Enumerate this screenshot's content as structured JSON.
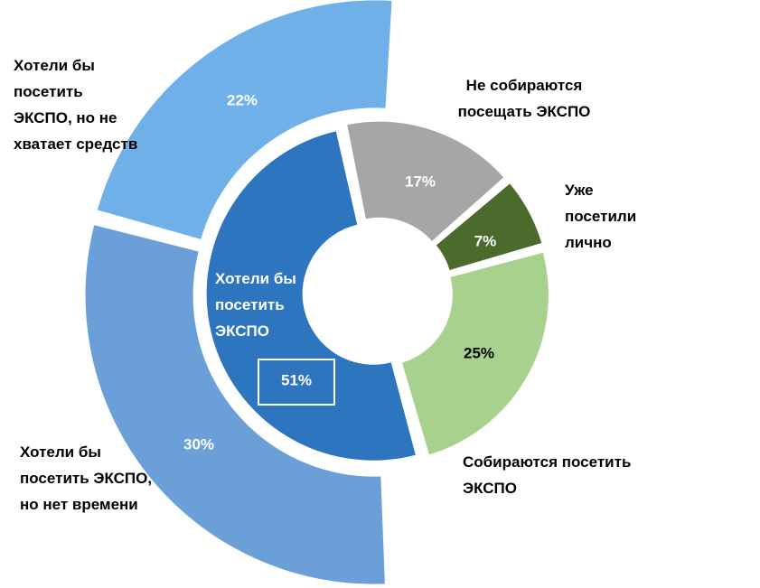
{
  "chart_data": [
    {
      "type": "donut",
      "categories": [
        "Не собираются посещать ЭКСПО",
        "Уже посетили лично",
        "Собираются посетить ЭКСПО",
        "Хотели бы посетить ЭКСПО"
      ],
      "values": [
        17,
        7,
        25,
        51
      ],
      "value_labels": [
        "17%",
        "7%",
        "25%",
        "51%"
      ],
      "colors": [
        "#a6a6a6",
        "#4b6b2c",
        "#a9d18e",
        "#2e75c0"
      ],
      "label_colors": [
        "#ffffff",
        "#ffffff",
        "#000000",
        "#ffffff"
      ]
    },
    {
      "type": "donut",
      "categories": [
        "Хотели бы посетить ЭКСПО, но нет времени",
        "Хотели бы посетить ЭКСПО, но не хватает средств"
      ],
      "values": [
        30,
        22
      ],
      "value_labels": [
        "30%",
        "22%"
      ],
      "colors": [
        "#6a9fd8",
        "#6fb0e8"
      ],
      "label_colors": [
        "#ffffff",
        "#ffffff"
      ]
    }
  ]
}
